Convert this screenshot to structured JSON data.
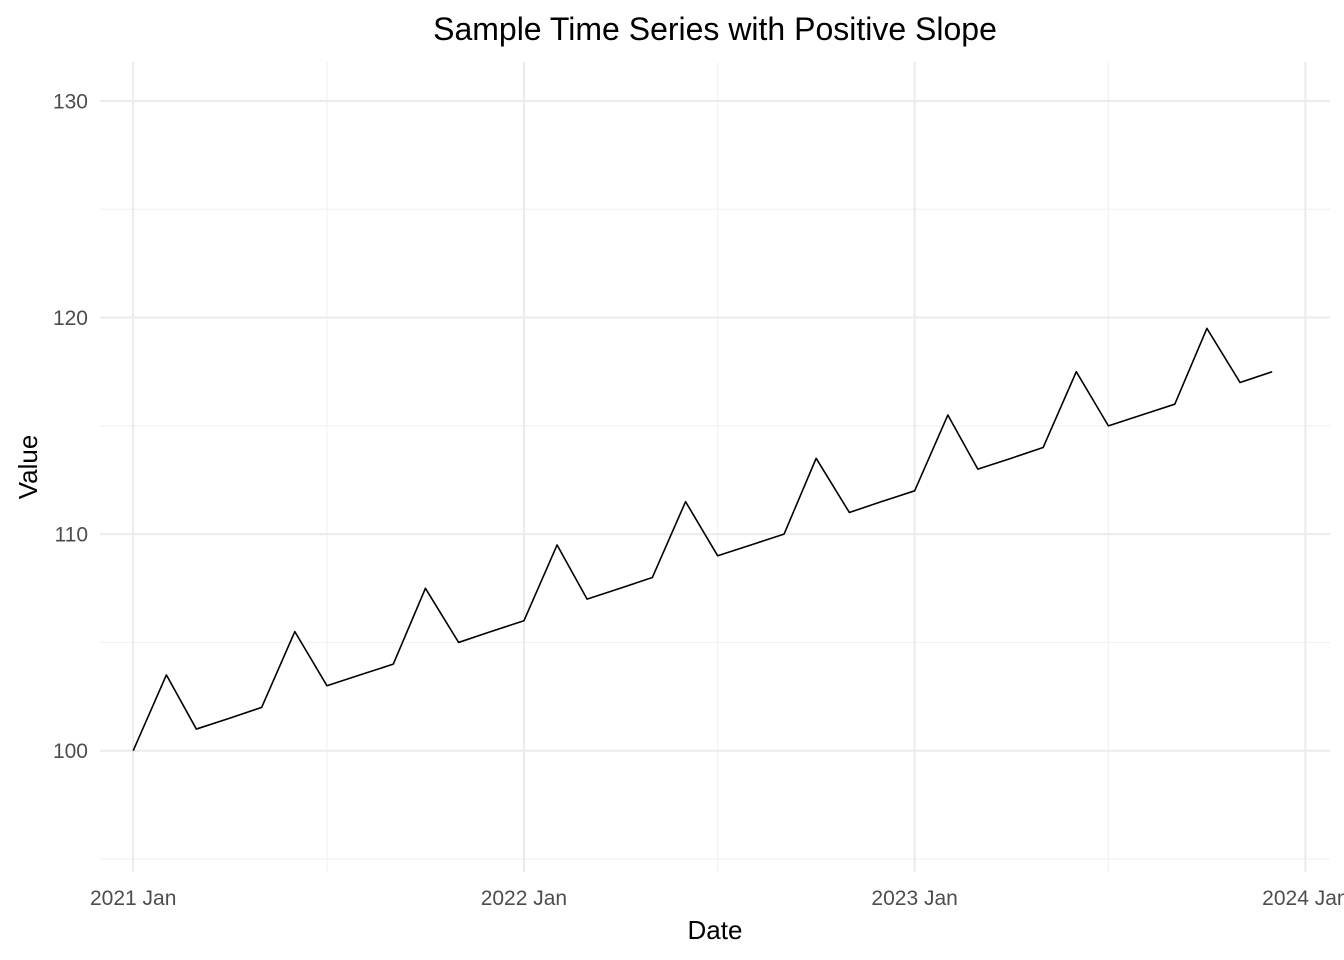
{
  "chart_data": {
    "type": "line",
    "title": "Sample Time Series with Positive Slope",
    "xlabel": "Date",
    "ylabel": "Value",
    "x_tick_labels": [
      "2021 Jan",
      "2022 Jan",
      "2023 Jan",
      "2024 Jan"
    ],
    "y_tick_labels": [
      "100",
      "110",
      "120",
      "130"
    ],
    "y_ticks": [
      100,
      110,
      120,
      130
    ],
    "ylim": [
      94.4,
      131.8
    ],
    "xlim": [
      "2020-12-01",
      "2024-01-24"
    ],
    "grid": true,
    "legend": "none",
    "series": [
      {
        "color": "#000000",
        "x": [
          "2021-01-01",
          "2021-02-01",
          "2021-03-01",
          "2021-04-01",
          "2021-05-01",
          "2021-06-01",
          "2021-07-01",
          "2021-08-01",
          "2021-09-01",
          "2021-10-01",
          "2021-11-01",
          "2021-12-01",
          "2022-01-01",
          "2022-02-01",
          "2022-03-01",
          "2022-04-01",
          "2022-05-01",
          "2022-06-01",
          "2022-07-01",
          "2022-08-01",
          "2022-09-01",
          "2022-10-01",
          "2022-11-01",
          "2022-12-01",
          "2023-01-01",
          "2023-02-01",
          "2023-03-01",
          "2023-04-01",
          "2023-05-01",
          "2023-06-01",
          "2023-07-01",
          "2023-08-01",
          "2023-09-01",
          "2023-10-01",
          "2023-11-01",
          "2023-12-01"
        ],
        "values": [
          100,
          103.5,
          101,
          101.5,
          102,
          105.5,
          103,
          103.5,
          104,
          107.5,
          105,
          105.5,
          106,
          109.5,
          107,
          107.5,
          108,
          111.5,
          109,
          109.5,
          110,
          113.5,
          111,
          111.5,
          112,
          115.5,
          113,
          113.5,
          114,
          117.5,
          115,
          115.5,
          116,
          119.5,
          117,
          117.5
        ]
      }
    ]
  }
}
